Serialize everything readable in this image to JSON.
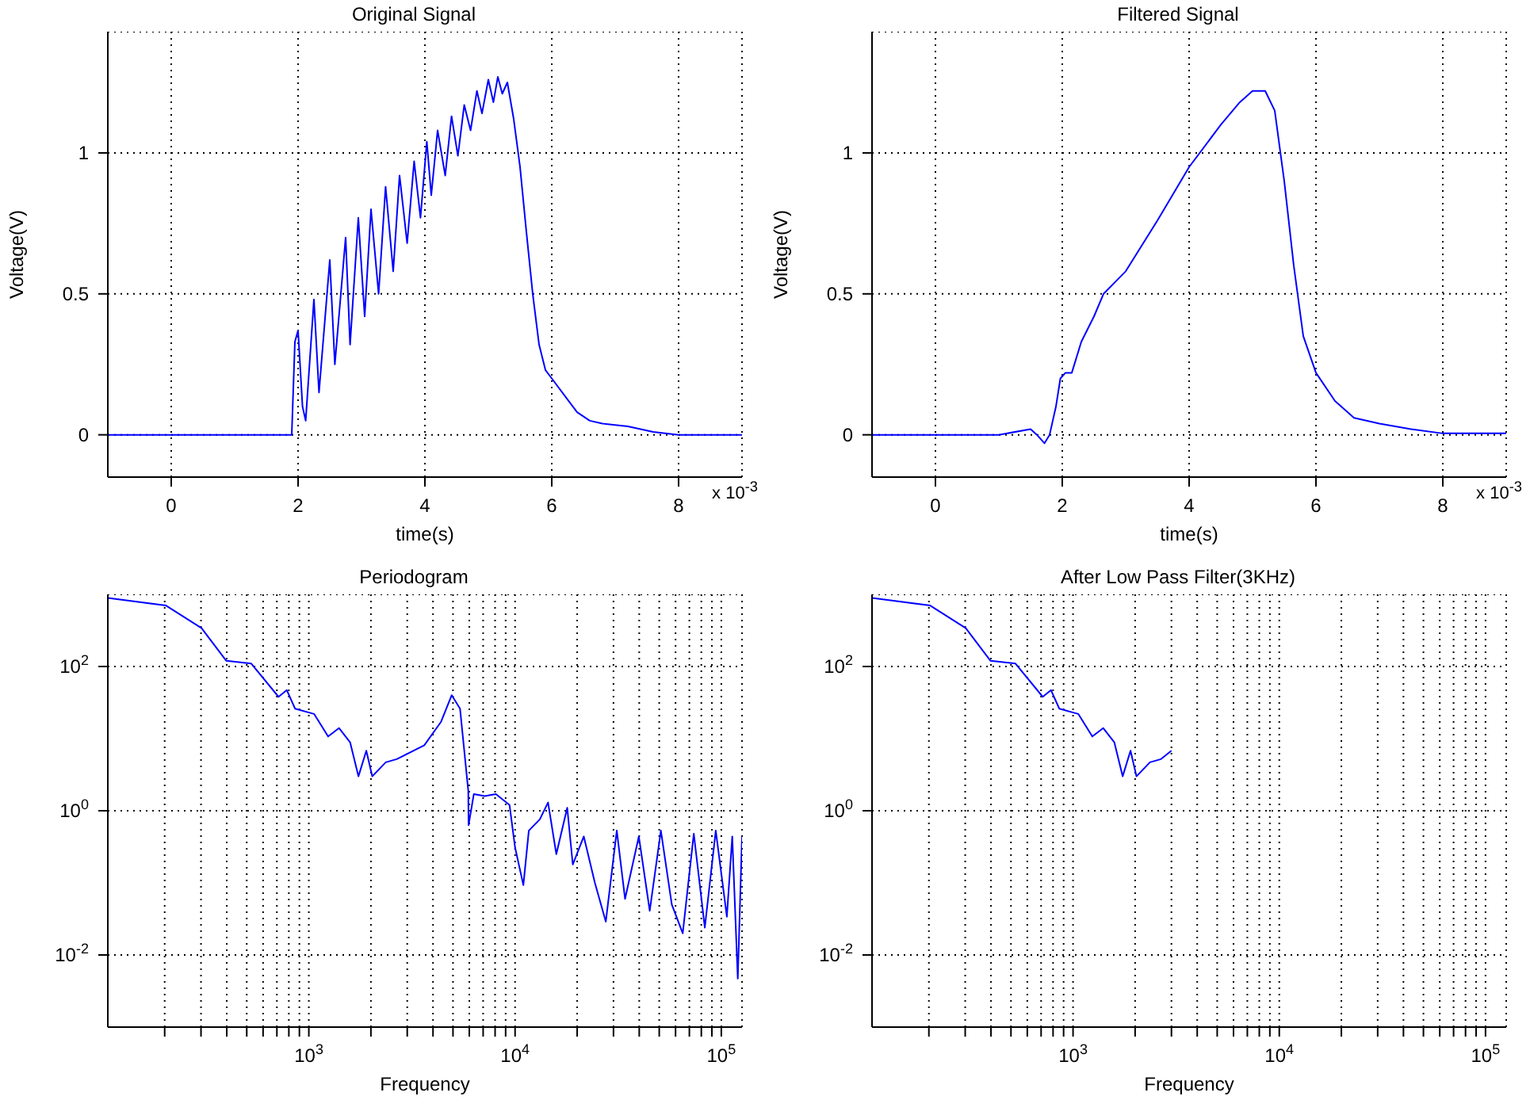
{
  "chart_data": [
    {
      "type": "line",
      "title": "Original Signal",
      "xlabel": "time(s)",
      "ylabel": "Voltage(V)",
      "annotations": [
        "x 10$^{-3}$"
      ],
      "grid": true,
      "xlim": [
        -1,
        9
      ],
      "ylim": [
        -0.15,
        1.43
      ],
      "xticks": [
        0,
        2,
        4,
        6,
        8
      ],
      "yticks": [
        0,
        0.5,
        1
      ],
      "x": [
        -1,
        0,
        1,
        1.9,
        1.95,
        2.0,
        2.07,
        2.12,
        2.25,
        2.33,
        2.5,
        2.58,
        2.75,
        2.82,
        2.95,
        3.05,
        3.15,
        3.27,
        3.38,
        3.5,
        3.6,
        3.72,
        3.83,
        3.93,
        4.03,
        4.1,
        4.2,
        4.32,
        4.42,
        4.52,
        4.62,
        4.72,
        4.82,
        4.9,
        5.0,
        5.08,
        5.15,
        5.22,
        5.3,
        5.4,
        5.5,
        5.6,
        5.7,
        5.8,
        5.9,
        6.0,
        6.2,
        6.4,
        6.6,
        6.8,
        7.2,
        7.6,
        8.0,
        9
      ],
      "series": [
        {
          "color": "#0000ff",
          "values": [
            0,
            0,
            0,
            0,
            0.33,
            0.37,
            0.1,
            0.05,
            0.48,
            0.15,
            0.62,
            0.25,
            0.7,
            0.32,
            0.77,
            0.42,
            0.8,
            0.5,
            0.88,
            0.58,
            0.92,
            0.68,
            0.97,
            0.77,
            1.04,
            0.85,
            1.08,
            0.92,
            1.13,
            0.99,
            1.17,
            1.08,
            1.22,
            1.14,
            1.26,
            1.18,
            1.27,
            1.21,
            1.25,
            1.12,
            0.95,
            0.72,
            0.5,
            0.32,
            0.23,
            0.2,
            0.14,
            0.08,
            0.05,
            0.04,
            0.03,
            0.01,
            0,
            0
          ]
        }
      ]
    },
    {
      "type": "line",
      "title": "Filtered Signal",
      "xlabel": "time(s)",
      "ylabel": "Voltage(V)",
      "annotations": [
        "x 10$^{-3}$"
      ],
      "grid": true,
      "xlim": [
        -1,
        9
      ],
      "ylim": [
        -0.15,
        1.43
      ],
      "xticks": [
        0,
        2,
        4,
        6,
        8
      ],
      "yticks": [
        0,
        0.5,
        1
      ],
      "x": [
        -1,
        0,
        1,
        1.5,
        1.6,
        1.72,
        1.8,
        1.9,
        1.97,
        2.05,
        2.15,
        2.3,
        2.5,
        2.65,
        3.0,
        3.5,
        4.0,
        4.5,
        4.8,
        5.0,
        5.2,
        5.35,
        5.5,
        5.65,
        5.8,
        6.0,
        6.3,
        6.6,
        7.0,
        7.5,
        8.0,
        9
      ],
      "series": [
        {
          "color": "#0000ff",
          "values": [
            0,
            0,
            0,
            0.02,
            0,
            -0.03,
            0,
            0.1,
            0.2,
            0.22,
            0.22,
            0.33,
            0.42,
            0.5,
            0.58,
            0.76,
            0.95,
            1.1,
            1.18,
            1.22,
            1.22,
            1.15,
            0.9,
            0.6,
            0.35,
            0.22,
            0.12,
            0.06,
            0.04,
            0.02,
            0.005,
            0.005
          ]
        }
      ]
    },
    {
      "type": "line",
      "title": "Periodogram",
      "xlabel": "Frequency",
      "grid": true,
      "log": "xy",
      "xlim": [
        106,
        126000
      ],
      "ylim": [
        0.001,
        1000
      ],
      "xticks": [
        {
          "value": 200,
          "label": null
        },
        {
          "value": 300,
          "label": null
        },
        {
          "value": 400,
          "label": null
        },
        {
          "value": 500,
          "label": null
        },
        {
          "value": 600,
          "label": null
        },
        {
          "value": 700,
          "label": null
        },
        {
          "value": 800,
          "label": null
        },
        {
          "value": 900,
          "label": null
        },
        {
          "value": 1000,
          "label": "10$^{3}$"
        },
        {
          "value": 2000,
          "label": null
        },
        {
          "value": 3000,
          "label": null
        },
        {
          "value": 4000,
          "label": null
        },
        {
          "value": 5000,
          "label": null
        },
        {
          "value": 6000,
          "label": null
        },
        {
          "value": 7000,
          "label": null
        },
        {
          "value": 8000,
          "label": null
        },
        {
          "value": 9000,
          "label": null
        },
        {
          "value": 10000,
          "label": "10$^{4}$"
        },
        {
          "value": 20000,
          "label": null
        },
        {
          "value": 30000,
          "label": null
        },
        {
          "value": 40000,
          "label": null
        },
        {
          "value": 50000,
          "label": null
        },
        {
          "value": 60000,
          "label": null
        },
        {
          "value": 70000,
          "label": null
        },
        {
          "value": 80000,
          "label": null
        },
        {
          "value": 90000,
          "label": null
        },
        {
          "value": 100000,
          "label": "10$^{5}$"
        }
      ],
      "yticks": [
        {
          "value": 0.01,
          "label": "10$^{-2}$"
        },
        {
          "value": 1,
          "label": "10$^{0}$"
        },
        {
          "value": 100,
          "label": "10$^{2}$"
        }
      ],
      "x": [
        106,
        203,
        302,
        398,
        525,
        713,
        782,
        858,
        1060,
        1240,
        1400,
        1585,
        1740,
        1900,
        2030,
        2360,
        2670,
        3630,
        4370,
        4930,
        5410,
        5930,
        5950,
        6310,
        7130,
        8070,
        9400,
        10000,
        10970,
        11660,
        13180,
        14450,
        15850,
        17900,
        19050,
        21540,
        24380,
        27540,
        31130,
        34140,
        39810,
        44980,
        50930,
        57540,
        65010,
        73550,
        83180,
        94000,
        106400,
        113000,
        120200,
        126000
      ],
      "series": [
        {
          "color": "#0000ff",
          "values": [
            890,
            700,
            340,
            120,
            110,
            38,
            47,
            26,
            22,
            10.7,
            14,
            8.9,
            3,
            6.8,
            3,
            4.7,
            5.2,
            8.1,
            17,
            40,
            26,
            1.9,
            0.63,
            1.7,
            1.6,
            1.7,
            1.2,
            0.31,
            0.093,
            0.53,
            0.76,
            1.3,
            0.25,
            1.1,
            0.18,
            0.44,
            0.1,
            0.029,
            0.53,
            0.06,
            0.44,
            0.041,
            0.53,
            0.05,
            0.02,
            0.48,
            0.024,
            0.53,
            0.034,
            0.44,
            0.0047,
            0.44
          ]
        }
      ]
    },
    {
      "type": "line",
      "title": "After Low Pass Filter(3KHz)",
      "xlabel": "Frequency",
      "grid": true,
      "log": "xy",
      "xlim": [
        106,
        126000
      ],
      "ylim": [
        0.001,
        1000
      ],
      "xticks": [
        {
          "value": 200,
          "label": null
        },
        {
          "value": 300,
          "label": null
        },
        {
          "value": 400,
          "label": null
        },
        {
          "value": 500,
          "label": null
        },
        {
          "value": 600,
          "label": null
        },
        {
          "value": 700,
          "label": null
        },
        {
          "value": 800,
          "label": null
        },
        {
          "value": 900,
          "label": null
        },
        {
          "value": 1000,
          "label": "10$^{3}$"
        },
        {
          "value": 2000,
          "label": null
        },
        {
          "value": 3000,
          "label": null
        },
        {
          "value": 4000,
          "label": null
        },
        {
          "value": 5000,
          "label": null
        },
        {
          "value": 6000,
          "label": null
        },
        {
          "value": 7000,
          "label": null
        },
        {
          "value": 8000,
          "label": null
        },
        {
          "value": 9000,
          "label": null
        },
        {
          "value": 10000,
          "label": "10$^{4}$"
        },
        {
          "value": 20000,
          "label": null
        },
        {
          "value": 30000,
          "label": null
        },
        {
          "value": 40000,
          "label": null
        },
        {
          "value": 50000,
          "label": null
        },
        {
          "value": 60000,
          "label": null
        },
        {
          "value": 70000,
          "label": null
        },
        {
          "value": 80000,
          "label": null
        },
        {
          "value": 90000,
          "label": null
        },
        {
          "value": 100000,
          "label": "10$^{5}$"
        }
      ],
      "yticks": [
        {
          "value": 0.01,
          "label": "10$^{-2}$"
        },
        {
          "value": 1,
          "label": "10$^{0}$"
        },
        {
          "value": 100,
          "label": "10$^{2}$"
        }
      ],
      "x": [
        106,
        203,
        302,
        398,
        525,
        713,
        782,
        858,
        1060,
        1240,
        1400,
        1585,
        1740,
        1900,
        2030,
        2360,
        2670,
        3000
      ],
      "series": [
        {
          "color": "#0000ff",
          "values": [
            890,
            700,
            340,
            120,
            110,
            38,
            47,
            26,
            22,
            10.7,
            14,
            8.9,
            3,
            6.8,
            3,
            4.7,
            5.2,
            6.8
          ]
        }
      ]
    }
  ]
}
